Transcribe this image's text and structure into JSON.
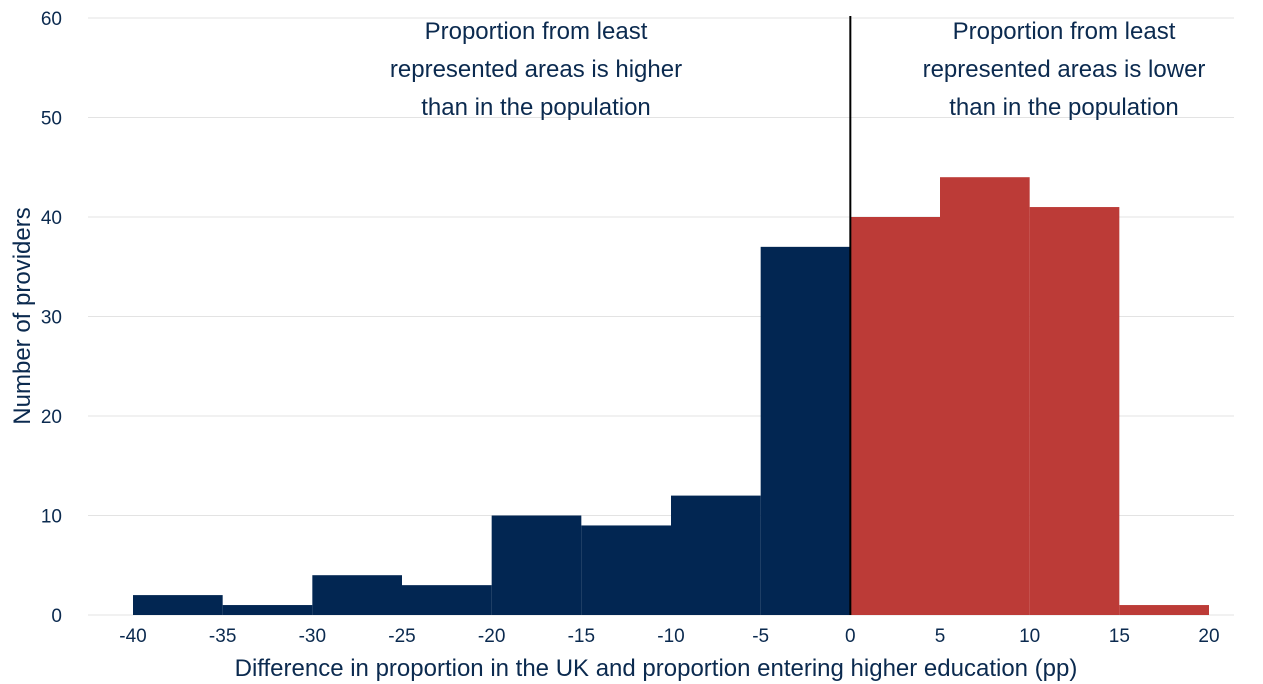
{
  "chart_data": {
    "type": "bar",
    "title": "",
    "xlabel": "Difference in proportion in the UK and proportion entering higher education (pp)",
    "ylabel": "Number of providers",
    "xlim": [
      -40,
      20
    ],
    "ylim": [
      0,
      60
    ],
    "x_ticks": [
      "-40",
      "-35",
      "-30",
      "-25",
      "-20",
      "-15",
      "-10",
      "-5",
      "0",
      "5",
      "10",
      "15",
      "20"
    ],
    "y_ticks": [
      "0",
      "10",
      "20",
      "30",
      "40",
      "50",
      "60"
    ],
    "grid": true,
    "legend": "none",
    "bins": [
      {
        "start": -40,
        "end": -35,
        "value": 2,
        "group": "higher"
      },
      {
        "start": -35,
        "end": -30,
        "value": 1,
        "group": "higher"
      },
      {
        "start": -30,
        "end": -25,
        "value": 4,
        "group": "higher"
      },
      {
        "start": -25,
        "end": -20,
        "value": 3,
        "group": "higher"
      },
      {
        "start": -20,
        "end": -15,
        "value": 10,
        "group": "higher"
      },
      {
        "start": -15,
        "end": -10,
        "value": 9,
        "group": "higher"
      },
      {
        "start": -10,
        "end": -5,
        "value": 12,
        "group": "higher"
      },
      {
        "start": -5,
        "end": 0,
        "value": 37,
        "group": "higher"
      },
      {
        "start": 0,
        "end": 5,
        "value": 40,
        "group": "lower"
      },
      {
        "start": 5,
        "end": 10,
        "value": 44,
        "group": "lower"
      },
      {
        "start": 10,
        "end": 15,
        "value": 41,
        "group": "lower"
      },
      {
        "start": 15,
        "end": 20,
        "value": 1,
        "group": "lower"
      }
    ],
    "annotations": [
      {
        "group": "higher",
        "lines": [
          "Proportion from least",
          "represented areas is higher",
          "than in the population"
        ]
      },
      {
        "group": "lower",
        "lines": [
          "Proportion from least",
          "represented areas is lower",
          "than in the population"
        ]
      }
    ],
    "reference_line_x": 0,
    "colors": {
      "higher": "#022652",
      "lower": "#bc3b37",
      "text": "#0b2a4f",
      "grid": "#e3e3e3",
      "reference_line": "#000000"
    }
  }
}
